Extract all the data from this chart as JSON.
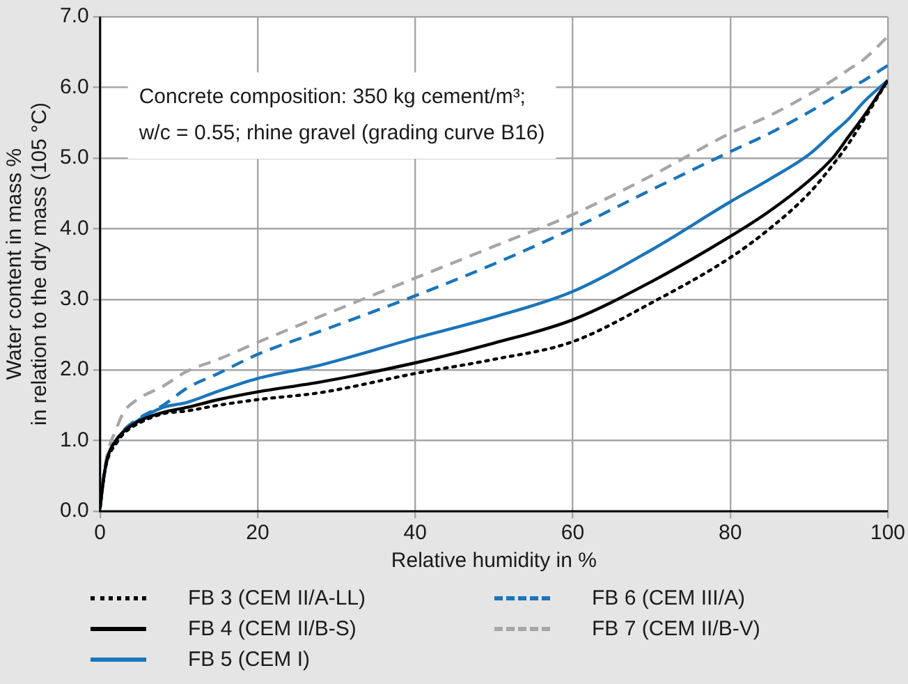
{
  "chart_data": {
    "type": "line",
    "xlabel": "Relative humidity in %",
    "ylabel": "Water content in mass %\nin relation to the dry mass (105 °C)",
    "x": [
      0,
      0.5,
      1,
      2,
      3,
      5,
      8,
      11,
      15,
      20,
      28,
      40,
      50,
      60,
      70,
      80,
      85,
      90,
      93,
      95,
      97,
      100
    ],
    "series": [
      {
        "name": "FB 3 (CEM II/A-LL)",
        "color": "#000000",
        "line_style": "dotted",
        "values": [
          0.05,
          0.5,
          0.75,
          0.95,
          1.1,
          1.25,
          1.38,
          1.42,
          1.5,
          1.58,
          1.68,
          1.95,
          2.15,
          2.4,
          2.95,
          3.59,
          4.0,
          4.5,
          4.9,
          5.2,
          5.55,
          6.1
        ]
      },
      {
        "name": "FB 4 (CEM II/B-S)",
        "color": "#000000",
        "line_style": "solid",
        "values": [
          0.05,
          0.5,
          0.78,
          1.0,
          1.13,
          1.28,
          1.4,
          1.47,
          1.58,
          1.69,
          1.83,
          2.1,
          2.38,
          2.71,
          3.25,
          3.89,
          4.25,
          4.68,
          5.0,
          5.3,
          5.6,
          6.1
        ]
      },
      {
        "name": "FB 5 (CEM I)",
        "color": "#1a75bb",
        "line_style": "solid",
        "values": [
          0.05,
          0.5,
          0.78,
          1.0,
          1.13,
          1.3,
          1.47,
          1.54,
          1.7,
          1.88,
          2.07,
          2.45,
          2.75,
          3.11,
          3.7,
          4.38,
          4.7,
          5.05,
          5.35,
          5.55,
          5.8,
          6.1
        ]
      },
      {
        "name": "FB 6 (CEM III/A)",
        "color": "#1a75bb",
        "line_style": "dashed",
        "values": [
          0.05,
          0.5,
          0.78,
          1.0,
          1.15,
          1.32,
          1.5,
          1.74,
          1.95,
          2.22,
          2.55,
          3.05,
          3.5,
          4.0,
          4.55,
          5.09,
          5.35,
          5.65,
          5.85,
          5.98,
          6.1,
          6.31
        ]
      },
      {
        "name": "FB 7 (CEM II/B-V)",
        "color": "#a6a6a6",
        "line_style": "dashed",
        "values": [
          0.05,
          0.55,
          0.85,
          1.15,
          1.4,
          1.6,
          1.77,
          1.98,
          2.15,
          2.39,
          2.76,
          3.3,
          3.75,
          4.2,
          4.75,
          5.35,
          5.6,
          5.9,
          6.1,
          6.25,
          6.4,
          6.72
        ]
      }
    ],
    "xlim": [
      0,
      100
    ],
    "xticks": [
      0,
      20,
      40,
      60,
      80,
      100
    ],
    "ylim": [
      0,
      7
    ],
    "yticks": [
      {
        "value": 0,
        "label": "0.0"
      },
      {
        "value": 1,
        "label": "1.0"
      },
      {
        "value": 2,
        "label": "2.0"
      },
      {
        "value": 3,
        "label": "3.0"
      },
      {
        "value": 4,
        "label": "4.0"
      },
      {
        "value": 5,
        "label": "5.0"
      },
      {
        "value": 6,
        "label": "6.0"
      },
      {
        "value": 7,
        "label": "7.0"
      }
    ],
    "annotations": [
      "Concrete composition: 350 kg cement/m³;",
      "w/c = 0.55; rhine gravel (grading curve B16)"
    ],
    "grid": true,
    "legend": "bottom",
    "marker": "none"
  }
}
